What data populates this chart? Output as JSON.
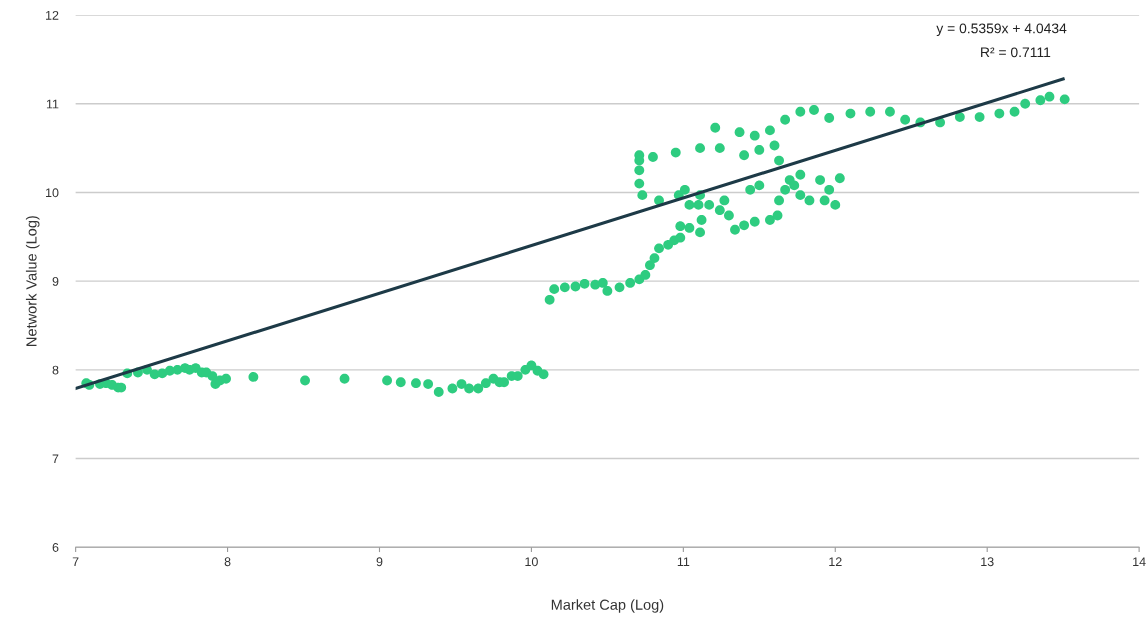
{
  "chart_data": {
    "type": "scatter",
    "xlabel": "Market Cap (Log)",
    "ylabel": "Network Value (Log)",
    "xlim": [
      7,
      14
    ],
    "xticks": [
      7,
      8,
      9,
      10,
      11,
      12,
      13,
      14
    ],
    "ylim": [
      6,
      12
    ],
    "yticks": [
      6,
      7,
      8,
      9,
      10,
      11,
      12
    ],
    "grid": "y",
    "marker": "circle",
    "annotations": [
      "y = 0.5359x + 4.0434",
      "R² = 0.7111"
    ],
    "series": [
      {
        "color": "#2ecc80",
        "x": [
          7.07,
          7.09,
          7.16,
          7.2,
          7.24,
          7.28,
          7.3,
          7.34,
          7.41,
          7.47,
          7.52,
          7.57,
          7.62,
          7.67,
          7.72,
          7.75,
          7.79,
          7.83,
          7.86,
          7.9,
          7.92,
          7.95,
          7.99,
          8.17,
          8.51,
          8.77,
          9.05,
          9.14,
          9.24,
          9.32,
          9.39,
          9.48,
          9.54,
          9.59,
          9.65,
          9.7,
          9.75,
          9.79,
          9.82,
          9.87,
          9.91,
          9.96,
          10.0,
          10.04,
          10.08,
          10.12,
          10.15,
          10.22,
          10.29,
          10.35,
          10.42,
          10.47,
          10.5,
          10.58,
          10.65,
          10.71,
          10.75,
          10.78,
          10.81,
          10.84,
          10.9,
          10.94,
          10.98,
          10.98,
          11.04,
          11.11,
          11.12,
          11.1,
          10.73,
          10.84,
          10.97,
          11.01,
          10.71,
          10.71,
          10.71,
          10.71,
          10.8,
          10.95,
          11.11,
          11.21,
          11.37,
          11.47,
          11.57,
          11.67,
          11.77,
          11.86,
          11.96,
          12.1,
          12.23,
          12.36,
          12.46,
          12.56,
          12.69,
          12.82,
          12.95,
          13.08,
          13.18,
          13.25,
          13.35,
          13.41,
          13.51,
          11.04,
          11.11,
          11.17,
          11.24,
          11.27,
          11.3,
          11.34,
          11.4,
          11.47,
          11.57,
          11.62,
          11.63,
          11.67,
          11.7,
          11.63,
          11.6,
          11.5,
          11.4,
          11.24,
          11.73,
          11.77,
          11.83,
          11.9,
          11.96,
          12.0,
          12.03,
          11.93,
          11.77,
          11.5,
          11.44
        ],
        "values": [
          7.85,
          7.83,
          7.84,
          7.85,
          7.83,
          7.8,
          7.8,
          7.96,
          7.97,
          8.0,
          7.95,
          7.96,
          7.99,
          8.0,
          8.02,
          8.0,
          8.02,
          7.97,
          7.97,
          7.93,
          7.84,
          7.88,
          7.9,
          7.92,
          7.88,
          7.9,
          7.88,
          7.86,
          7.85,
          7.84,
          7.75,
          7.79,
          7.84,
          7.79,
          7.79,
          7.85,
          7.9,
          7.86,
          7.86,
          7.93,
          7.93,
          8.0,
          8.05,
          7.99,
          7.95,
          8.79,
          8.91,
          8.93,
          8.94,
          8.97,
          8.96,
          8.98,
          8.89,
          8.93,
          8.98,
          9.02,
          9.07,
          9.18,
          9.26,
          9.37,
          9.41,
          9.46,
          9.49,
          9.62,
          9.6,
          9.55,
          9.69,
          9.86,
          9.97,
          9.91,
          9.97,
          10.03,
          10.1,
          10.25,
          10.42,
          10.36,
          10.4,
          10.45,
          10.5,
          10.73,
          10.68,
          10.64,
          10.7,
          10.82,
          10.91,
          10.93,
          10.84,
          10.89,
          10.91,
          10.91,
          10.82,
          10.79,
          10.79,
          10.85,
          10.85,
          10.89,
          10.91,
          11.0,
          11.04,
          11.08,
          11.05,
          9.86,
          9.97,
          9.86,
          9.8,
          9.91,
          9.74,
          9.58,
          9.63,
          9.67,
          9.69,
          9.74,
          9.91,
          10.03,
          10.14,
          10.36,
          10.53,
          10.48,
          10.42,
          10.5,
          10.08,
          9.97,
          9.91,
          10.14,
          10.03,
          9.86,
          10.16,
          9.91,
          10.2,
          10.08,
          10.03
        ]
      },
      {
        "type": "line",
        "color": "#1d3a47",
        "marker": "none",
        "x": [
          7,
          13.5
        ],
        "values": [
          7.79,
          11.28
        ]
      }
    ]
  }
}
